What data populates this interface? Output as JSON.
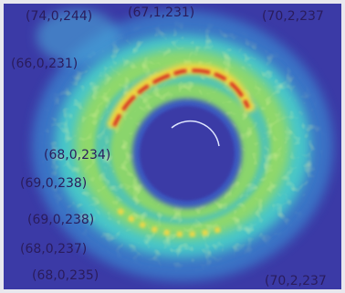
{
  "labels": [
    "(74,0,244)",
    "(67,1,231)",
    "(70,2,237",
    "(66,0,231)",
    "(68,0,234)",
    "(69,0,238)",
    "(69,0,238)",
    "(68,0,237)",
    "(68,0,235)",
    "(70,2,237"
  ]
}
